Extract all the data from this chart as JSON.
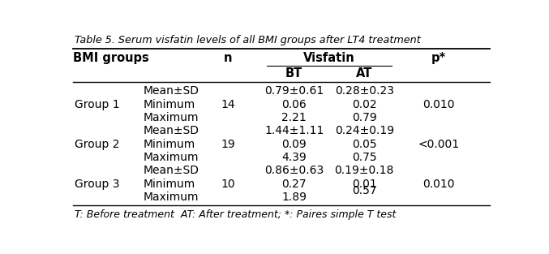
{
  "title": "Table 5. Serum visfatin levels of all BMI groups after LT4 treatment",
  "footnote": "T: Before treatment  AT: After treatment; *: Paires simple T test",
  "col_headers": [
    "BMI groups",
    "n",
    "BT",
    "AT",
    "p*"
  ],
  "visfatin_label": "Visfatin",
  "rows": [
    {
      "group": "Group 1",
      "stat": "Mean±SD",
      "n": "",
      "bt": "0.79±0.61",
      "at": "0.28±0.23",
      "p": ""
    },
    {
      "group": "",
      "stat": "Minimum",
      "n": "14",
      "bt": "0.06",
      "at": "0.02",
      "p": "0.010"
    },
    {
      "group": "",
      "stat": "Maximum",
      "n": "",
      "bt": "2.21",
      "at": "0.79",
      "p": ""
    },
    {
      "group": "Group 2",
      "stat": "Mean±SD",
      "n": "",
      "bt": "1.44±1.11",
      "at": "0.24±0.19",
      "p": ""
    },
    {
      "group": "",
      "stat": "Minimum",
      "n": "19",
      "bt": "0.09",
      "at": "0.05",
      "p": "<0.001"
    },
    {
      "group": "",
      "stat": "Maximum",
      "n": "",
      "bt": "4.39",
      "at": "0.75",
      "p": ""
    },
    {
      "group": "Group 3",
      "stat": "Mean±SD",
      "n": "",
      "bt": "0.86±0.63",
      "at": "0.19±0.18",
      "p": ""
    },
    {
      "group": "",
      "stat": "Minimum",
      "n": "10",
      "bt": "0.27",
      "at": "0.01",
      "p": "0.010"
    },
    {
      "group": "",
      "stat": "Maximum",
      "n": "",
      "bt": "1.89",
      "at": "",
      "p": ""
    }
  ],
  "at_extra": {
    "row": 8,
    "value": "0.57",
    "between_rows": [
      7,
      8
    ]
  },
  "bg_color": "#ffffff",
  "border_color": "#000000",
  "text_color": "#000000",
  "fig_width": 6.77,
  "fig_height": 3.13,
  "dpi": 100
}
